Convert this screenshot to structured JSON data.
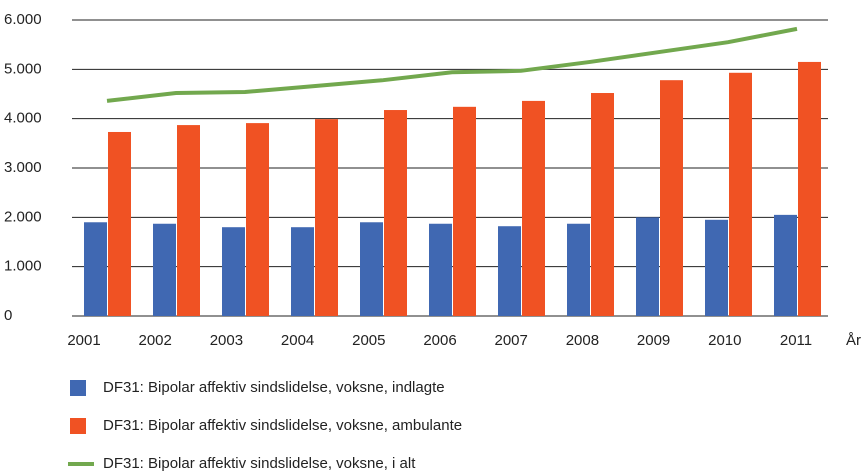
{
  "chart_data": {
    "type": "bar",
    "categories": [
      "2001",
      "2002",
      "2003",
      "2004",
      "2005",
      "2006",
      "2007",
      "2008",
      "2009",
      "2010",
      "2011"
    ],
    "x_label": "År",
    "series": [
      {
        "name": "DF31: Bipolar affektiv sindslidelse, voksne, indlagte",
        "type": "bar",
        "color": "#4068b2",
        "values": [
          1900,
          1870,
          1800,
          1800,
          1900,
          1870,
          1820,
          1870,
          2000,
          1950,
          2050
        ]
      },
      {
        "name": "DF31: Bipolar affektiv sindslidelse, voksne, ambulante",
        "type": "bar",
        "color": "#f05223",
        "values": [
          3730,
          3870,
          3910,
          3990,
          4175,
          4240,
          4360,
          4520,
          4780,
          4930,
          5150
        ]
      },
      {
        "name": "DF31: Bipolar affektiv sindslidelse, voksne, i alt",
        "type": "line",
        "color": "#72a84e",
        "values": [
          4360,
          4520,
          4540,
          4660,
          4780,
          4940,
          4970,
          5150,
          5350,
          5550,
          5820
        ]
      }
    ],
    "ylim": [
      0,
      6000
    ],
    "yticks": [
      0,
      {
        "value": 1000,
        "label": "1.000"
      },
      {
        "value": 2000,
        "label": "2.000"
      },
      {
        "value": 3000,
        "label": "3.000"
      },
      {
        "value": 4000,
        "label": "4.000"
      },
      {
        "value": 5000,
        "label": "5.000"
      },
      {
        "value": 6000,
        "label": "6.000"
      }
    ],
    "grid": true
  }
}
